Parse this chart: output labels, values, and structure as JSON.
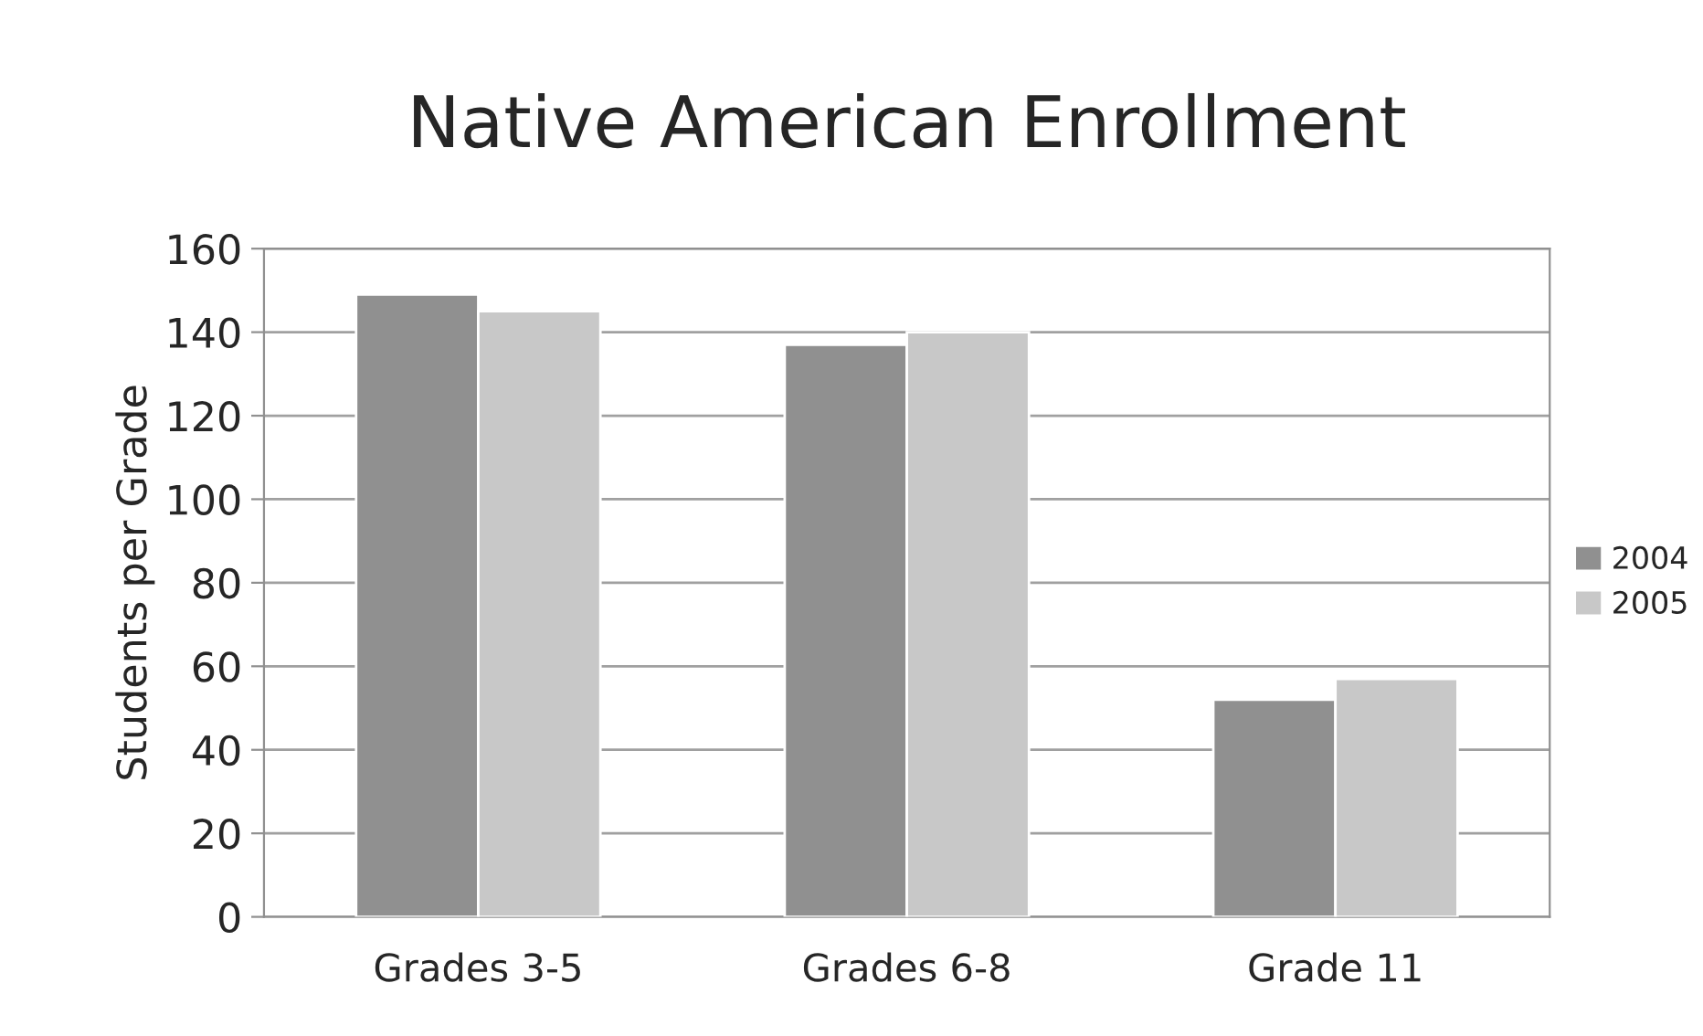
{
  "chart_data": {
    "type": "bar",
    "title": "Native American Enrollment",
    "ylabel": "Students per Grade",
    "categories": [
      "Grades 3-5",
      "Grades 6-8",
      "Grade 11"
    ],
    "series": [
      {
        "name": "2004",
        "color": "#909090",
        "values": [
          149,
          137,
          52
        ]
      },
      {
        "name": "2005",
        "color": "#c8c8c8",
        "values": [
          145,
          140,
          57
        ]
      }
    ],
    "ylim": [
      0,
      160
    ],
    "yticks": [
      0,
      20,
      40,
      60,
      80,
      100,
      120,
      140,
      160
    ],
    "grid": "y",
    "legend": "right"
  }
}
